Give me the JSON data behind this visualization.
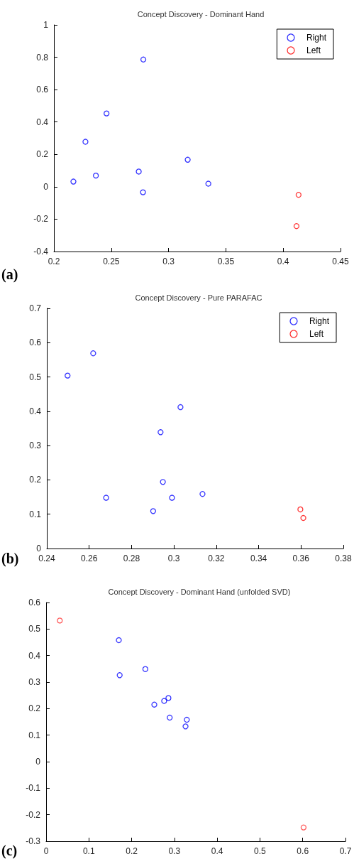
{
  "chart_data": [
    {
      "type": "scatter",
      "title": "Concept Discovery - Dominant Hand",
      "annotations": [
        "(a)"
      ],
      "legend": "top right",
      "marker": "circle",
      "grid": false,
      "xlim": [
        0.2,
        0.45
      ],
      "xticks": [
        0.2,
        0.25,
        0.3,
        0.35,
        0.4,
        0.45
      ],
      "ylim": [
        -0.4,
        1
      ],
      "yticks": [
        -0.4,
        -0.2,
        0,
        0.2,
        0.4,
        0.6,
        0.8,
        1
      ],
      "series": [
        {
          "name": "Right",
          "color": "#0000ff",
          "x": [
            0.217,
            0.2275,
            0.2366,
            0.2459,
            0.278,
            0.274,
            0.2777,
            0.3167,
            0.3347
          ],
          "values": [
            0.032,
            0.278,
            0.069,
            0.453,
            0.786,
            0.094,
            -0.034,
            0.167,
            0.019
          ]
        },
        {
          "name": "Left",
          "color": "#ff0000",
          "x": [
            0.4134,
            0.4116
          ],
          "values": [
            -0.05,
            -0.243
          ]
        }
      ]
    },
    {
      "type": "scatter",
      "title": "Concept Discovery - Pure PARAFAC",
      "annotations": [
        "(b)"
      ],
      "legend": "top right",
      "marker": "circle",
      "grid": false,
      "xlim": [
        0.24,
        0.38
      ],
      "xticks": [
        0.24,
        0.26,
        0.28,
        0.3,
        0.32,
        0.34,
        0.36,
        0.38
      ],
      "ylim": [
        0,
        0.7
      ],
      "yticks": [
        0,
        0.1,
        0.2,
        0.3,
        0.4,
        0.5,
        0.6,
        0.7
      ],
      "series": [
        {
          "name": "Right",
          "color": "#0000ff",
          "x": [
            0.2498,
            0.2619,
            0.268,
            0.2902,
            0.2937,
            0.2948,
            0.2991,
            0.3031,
            0.3135
          ],
          "values": [
            0.504,
            0.569,
            0.148,
            0.109,
            0.339,
            0.194,
            0.148,
            0.412,
            0.159
          ]
        },
        {
          "name": "Left",
          "color": "#ff0000",
          "x": [
            0.3597,
            0.3611
          ],
          "values": [
            0.114,
            0.089
          ]
        }
      ]
    },
    {
      "type": "scatter",
      "title": "Concept Discovery - Dominant Hand (unfolded SVD)",
      "annotations": [
        "(c)"
      ],
      "marker": "circle",
      "grid": false,
      "xlim": [
        0,
        0.7
      ],
      "xticks": [
        0,
        0.1,
        0.2,
        0.3,
        0.4,
        0.5,
        0.6,
        0.7
      ],
      "ylim": [
        -0.3,
        0.6
      ],
      "yticks": [
        -0.3,
        -0.2,
        -0.1,
        0,
        0.1,
        0.2,
        0.3,
        0.4,
        0.5,
        0.6
      ],
      "series": [
        {
          "color": "#0000ff",
          "x": [
            0.17,
            0.172,
            0.232,
            0.253,
            0.276,
            0.286,
            0.289,
            0.329,
            0.326
          ],
          "values": [
            0.458,
            0.326,
            0.349,
            0.215,
            0.229,
            0.24,
            0.166,
            0.158,
            0.133
          ]
        },
        {
          "color": "#ff3333",
          "x": [
            0.032,
            0.602
          ],
          "values": [
            0.532,
            -0.248
          ]
        }
      ]
    }
  ]
}
